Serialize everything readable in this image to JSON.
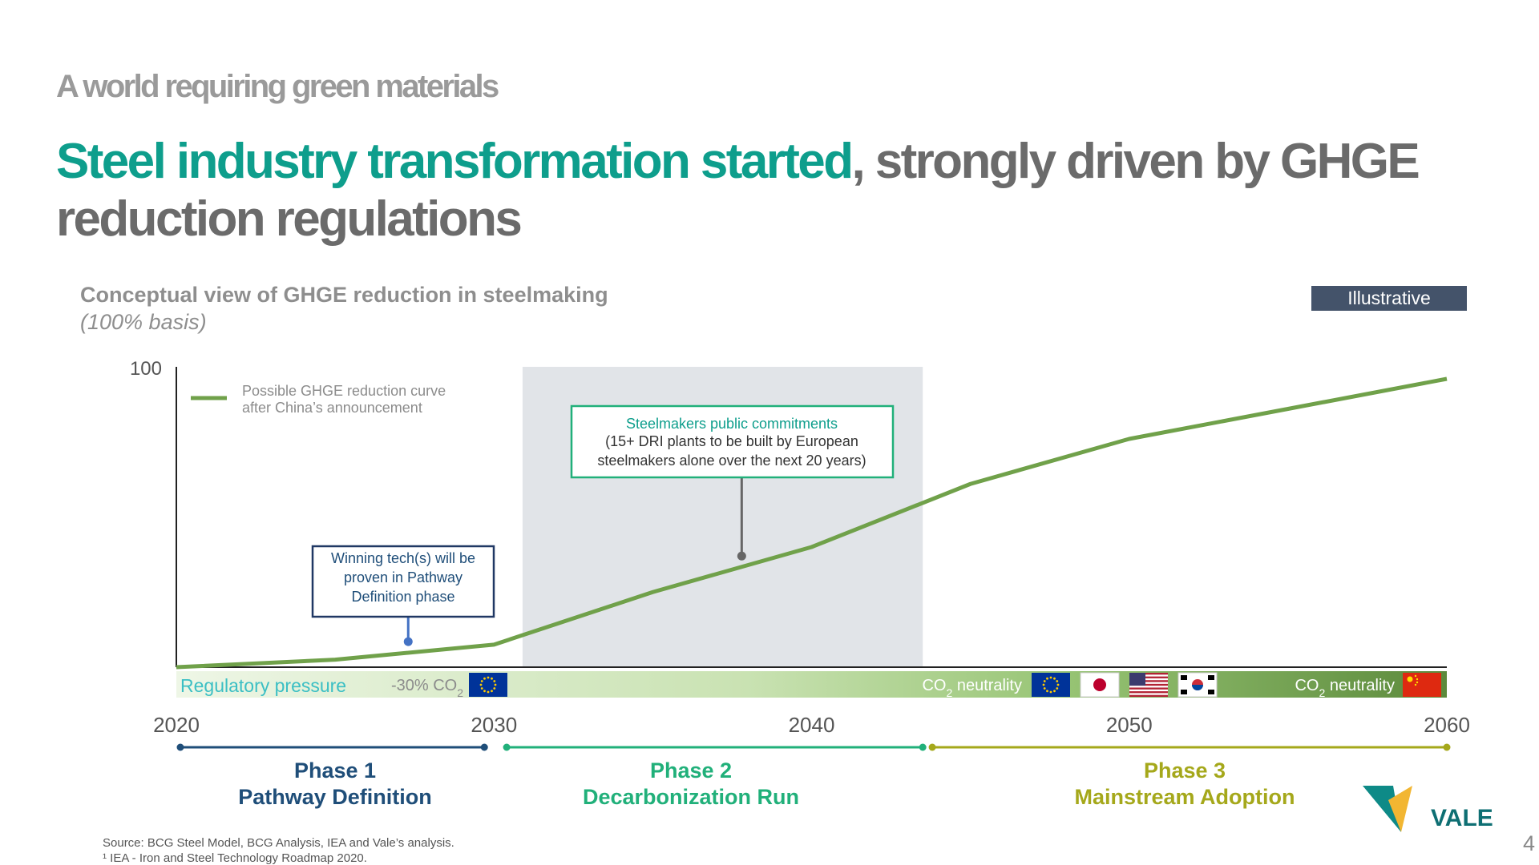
{
  "header": {
    "kicker": "A world requiring green materials",
    "title_highlight": "Steel industry transformation started",
    "title_rest": ", strongly driven by GHGE reduction regulations"
  },
  "badge": "Illustrative",
  "chart_data": {
    "type": "line",
    "title": "Conceptual view of GHGE reduction in steelmaking",
    "subtitle": "(100% basis)",
    "x_ticks": [
      "2020",
      "2030",
      "2040",
      "2050",
      "2060"
    ],
    "xlim": [
      2020,
      2060
    ],
    "ylim": [
      0,
      100
    ],
    "y_ticks": [
      "100"
    ],
    "series": [
      {
        "name": "Possible GHGE reduction curve after China’s announcement",
        "color": "#70a14a",
        "points": [
          [
            2020,
            0
          ],
          [
            2025,
            2.5
          ],
          [
            2030,
            7.5
          ],
          [
            2035,
            25
          ],
          [
            2040,
            40
          ],
          [
            2045,
            61
          ],
          [
            2050,
            76
          ],
          [
            2055,
            86
          ],
          [
            2060,
            96
          ]
        ]
      }
    ],
    "shaded_region": [
      2030.9,
      2043.5
    ],
    "annotations": [
      {
        "id": "tech",
        "lines": [
          "Winning tech(s) will be",
          "proven in Pathway",
          "Definition phase"
        ],
        "point": [
          2027.3,
          8.5
        ],
        "box_color": "#203864",
        "pin_color": "#4472c4"
      },
      {
        "id": "commit",
        "title": "Steelmakers public commitments",
        "lines": [
          "(15+ DRI plants to be built by European",
          "steelmakers alone over the next 20 years)"
        ],
        "point": [
          2037.8,
          37
        ],
        "box_color": "#21b07a",
        "title_color": "#0e9e8c",
        "pin_color": "#666666"
      }
    ],
    "regulatory_bar": {
      "label": "Regulatory pressure",
      "label_color": "#3bbfc4",
      "items": [
        {
          "text": "-30% CO",
          "sub": "2",
          "year": 2030,
          "flags": [
            "eu-flag-icon"
          ]
        },
        {
          "text": "CO",
          "sub": "2",
          "rest": " neutrality",
          "year": 2050,
          "flags": [
            "eu-flag-icon",
            "japan-flag-icon",
            "usa-flag-icon",
            "korea-flag-icon"
          ]
        },
        {
          "text": "CO",
          "sub": "2",
          "rest": " neutrality",
          "year": 2060,
          "flags": [
            "china-flag-icon"
          ]
        }
      ]
    },
    "phases": [
      {
        "number": "Phase 1",
        "name": "Pathway Definition",
        "color": "#1f4e79",
        "range": [
          2020,
          2030
        ]
      },
      {
        "number": "Phase 2",
        "name": "Decarbonization Run",
        "color": "#21b07a",
        "range": [
          2030.4,
          2043.5
        ]
      },
      {
        "number": "Phase 3",
        "name": "Mainstream Adoption",
        "color": "#a5a81b",
        "range": [
          2043.8,
          2060
        ]
      }
    ]
  },
  "footer": {
    "source": "Source: BCG Steel Model, BCG Analysis, IEA and Vale’s analysis.",
    "footnote": "¹ IEA - Iron and Steel Technology Roadmap 2020.",
    "page": "4",
    "logo_text": "VALE"
  }
}
